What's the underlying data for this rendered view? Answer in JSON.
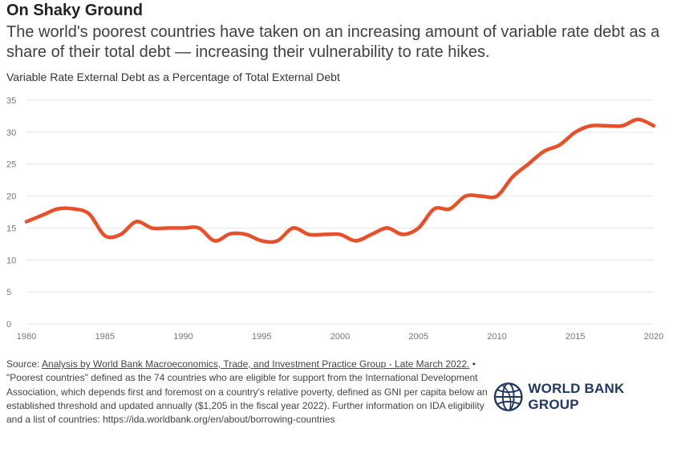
{
  "header": {
    "title": "On Shaky Ground",
    "subtitle": "The world's poorest countries have taken on an increasing amount of variable rate debt as a share of their total debt — increasing their vulnerability to rate hikes."
  },
  "footer": {
    "source_prefix": "Source: ",
    "source_link": "Analysis by World Bank Macroeconomics, Trade, and Investment Practice Group - Late March 2022.",
    "note": " • \"Poorest countries\" defined as the 74 countries who are eligible for support from the International Development Association, which depends first and foremost on a country's relative poverty, defined as GNI per capita below an established threshold and updated annually ($1,205 in the fiscal year 2022). Further information on IDA eligibility and a list of countries: https://ida.worldbank.org/en/about/borrowing-countries",
    "logo_text": "WORLD BANK GROUP",
    "logo_icon": "globe-icon"
  },
  "colors": {
    "line": "#e8502a",
    "grid": "#e6e6e6",
    "logo": "#1f3864"
  },
  "chart_data": {
    "type": "line",
    "title": "Variable Rate External Debt as a Percentage of Total External Debt",
    "xlabel": "",
    "ylabel": "",
    "xlim": [
      1980,
      2020
    ],
    "ylim": [
      0,
      35
    ],
    "x_ticks": [
      1980,
      1985,
      1990,
      1995,
      2000,
      2005,
      2010,
      2015,
      2020
    ],
    "y_ticks": [
      0,
      5,
      10,
      15,
      20,
      25,
      30,
      35
    ],
    "grid": true,
    "legend": "none",
    "series": [
      {
        "x": [
          1980,
          1981,
          1982,
          1983,
          1984,
          1985,
          1986,
          1987,
          1988,
          1989,
          1990,
          1991,
          1992,
          1993,
          1994,
          1995,
          1996,
          1997,
          1998,
          1999,
          2000,
          2001,
          2002,
          2003,
          2004,
          2005,
          2006,
          2007,
          2008,
          2009,
          2010,
          2011,
          2012,
          2013,
          2014,
          2015,
          2016,
          2017,
          2018,
          2019,
          2020
        ],
        "values": [
          16.0,
          17.0,
          18.0,
          18.0,
          17.2,
          13.8,
          14.0,
          16.0,
          15.0,
          15.0,
          15.0,
          15.0,
          13.0,
          14.1,
          14.0,
          13.0,
          13.0,
          15.0,
          14.0,
          14.0,
          14.0,
          13.0,
          14.0,
          15.0,
          14.0,
          15.0,
          18.0,
          18.0,
          20.0,
          20.0,
          20.0,
          23.0,
          25.0,
          27.0,
          28.0,
          30.0,
          31.0,
          31.0,
          31.0,
          32.0,
          31.0
        ]
      }
    ]
  }
}
